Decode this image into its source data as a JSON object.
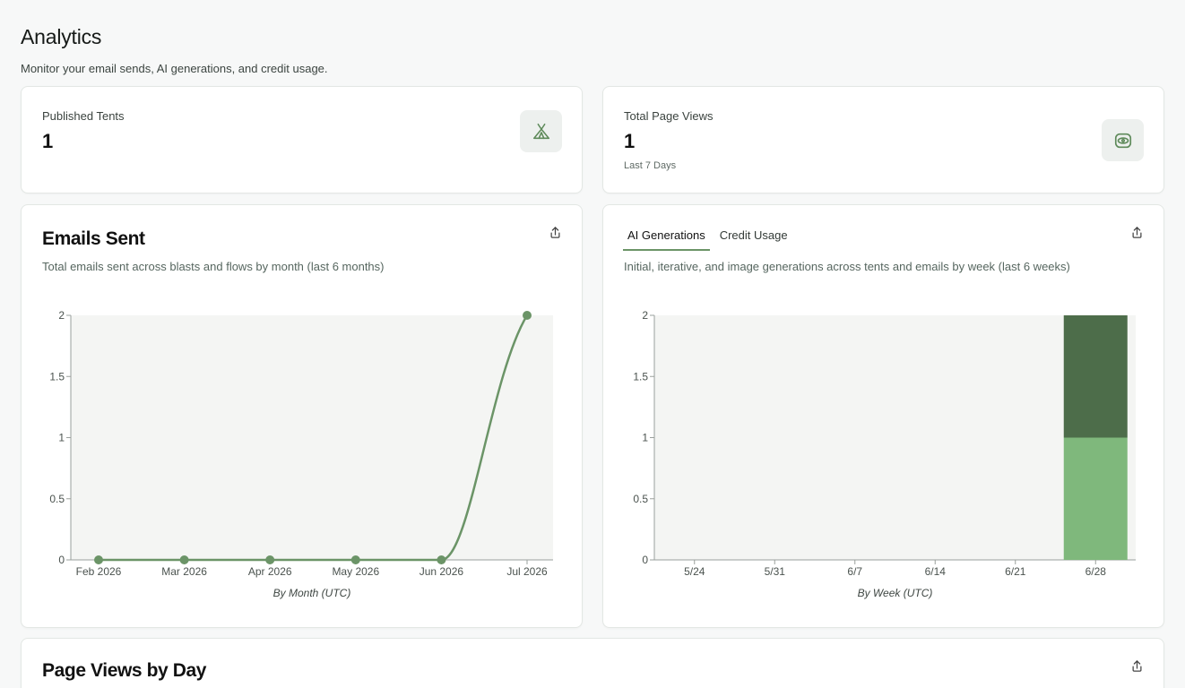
{
  "header": {
    "title": "Analytics",
    "subtitle": "Monitor your email sends, AI generations, and credit usage."
  },
  "stats": {
    "published_tents": {
      "label": "Published Tents",
      "value": "1",
      "icon": "tent-icon"
    },
    "page_views": {
      "label": "Total Page Views",
      "value": "1",
      "note": "Last 7 Days",
      "icon": "eye-icon"
    }
  },
  "emails_card": {
    "title": "Emails Sent",
    "description": "Total emails sent across blasts and flows by month (last 6 months)"
  },
  "ai_card": {
    "tabs": [
      {
        "label": "AI Generations",
        "active": true
      },
      {
        "label": "Credit Usage",
        "active": false
      }
    ],
    "description": "Initial, iterative, and image generations across tents and emails by week (last 6 weeks)"
  },
  "page_views_card": {
    "title": "Page Views by Day"
  },
  "colors": {
    "accent": "#6b9467",
    "bar_dark": "#4d6d4a",
    "bar_light": "#7fb87c",
    "plot_bg": "#f4f5f3"
  },
  "chart_data": [
    {
      "type": "line",
      "x": [
        "Feb 2026",
        "Mar 2026",
        "Apr 2026",
        "May 2026",
        "Jun 2026",
        "Jul 2026"
      ],
      "values": [
        0,
        0,
        0,
        0,
        0,
        2
      ],
      "xlabel": "By Month (UTC)",
      "ylabel": "",
      "yticks": [
        "0",
        "0.5",
        "1",
        "1.5",
        "2"
      ],
      "ylim": [
        0,
        2
      ],
      "grid": false
    },
    {
      "type": "bar",
      "stacked": true,
      "categories": [
        "5/24",
        "5/31",
        "6/7",
        "6/14",
        "6/21",
        "6/28"
      ],
      "series": [
        {
          "values": [
            0,
            0,
            0,
            0,
            0,
            1
          ],
          "color": "#7fb87c"
        },
        {
          "values": [
            0,
            0,
            0,
            0,
            0,
            1
          ],
          "color": "#4d6d4a"
        }
      ],
      "xlabel": "By Week (UTC)",
      "ylabel": "",
      "yticks": [
        "0",
        "0.5",
        "1",
        "1.5",
        "2"
      ],
      "ylim": [
        0,
        2
      ],
      "grid": false
    }
  ]
}
